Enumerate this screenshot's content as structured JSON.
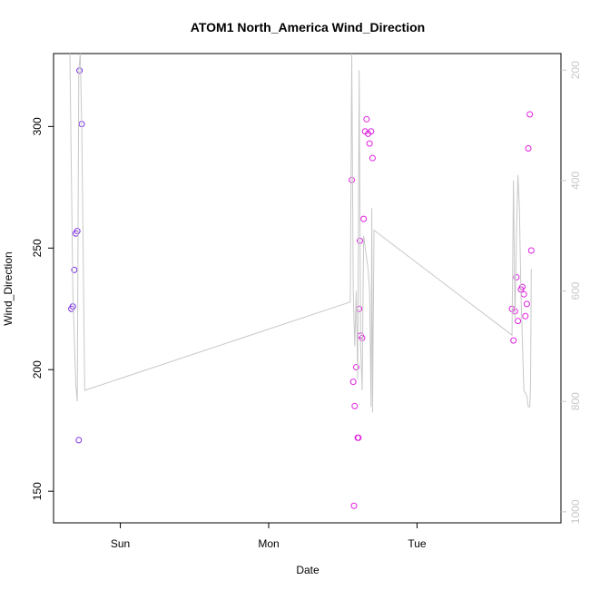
{
  "chart_data": {
    "type": "scatter",
    "title": "ATOM1 North_America Wind_Direction",
    "xlabel": "Date",
    "ylabel": "Wind_Direction",
    "x_unit": "day",
    "x_ticks": [
      {
        "label": "Sun",
        "value": 1
      },
      {
        "label": "Mon",
        "value": 2
      },
      {
        "label": "Tue",
        "value": 3
      }
    ],
    "xlim": [
      0.55,
      3.97
    ],
    "ylim": [
      137,
      330
    ],
    "y_ticks": [
      150,
      200,
      250,
      300
    ],
    "y2lim": [
      1020,
      170
    ],
    "y2_ticks": [
      200,
      400,
      600,
      800,
      1000
    ],
    "y2_color": "#c8c8c8",
    "grid": false,
    "series": [
      {
        "kind": "points",
        "color": "#7b2fe8",
        "points": [
          [
            0.67,
            225
          ],
          [
            0.68,
            226
          ],
          [
            0.69,
            241
          ],
          [
            0.7,
            256
          ],
          [
            0.71,
            257
          ],
          [
            0.72,
            171
          ],
          [
            0.725,
            323
          ],
          [
            0.74,
            301
          ]
        ]
      },
      {
        "kind": "points",
        "color": "#e020e0",
        "points": [
          [
            2.56,
            278
          ],
          [
            2.57,
            195
          ],
          [
            2.575,
            144
          ],
          [
            2.58,
            185
          ],
          [
            2.59,
            201
          ],
          [
            2.6,
            172
          ],
          [
            2.605,
            172
          ],
          [
            2.61,
            225
          ],
          [
            2.615,
            253
          ],
          [
            2.62,
            214
          ],
          [
            2.63,
            213
          ],
          [
            2.64,
            262
          ],
          [
            2.65,
            298
          ],
          [
            2.66,
            303
          ],
          [
            2.67,
            297
          ],
          [
            2.68,
            293
          ],
          [
            2.69,
            298
          ],
          [
            2.7,
            287
          ],
          [
            3.64,
            225
          ],
          [
            3.65,
            212
          ],
          [
            3.66,
            224
          ],
          [
            3.67,
            238
          ],
          [
            3.68,
            220
          ],
          [
            3.7,
            233
          ],
          [
            3.71,
            234
          ],
          [
            3.72,
            231
          ],
          [
            3.73,
            222
          ],
          [
            3.74,
            227
          ],
          [
            3.75,
            291
          ],
          [
            3.76,
            305
          ],
          [
            3.77,
            249
          ]
        ]
      },
      {
        "kind": "line",
        "axis": "y2",
        "color": "#c8c8c8",
        "points": [
          [
            0.66,
            170
          ],
          [
            0.68,
            600
          ],
          [
            0.7,
            770
          ],
          [
            0.71,
            800
          ],
          [
            0.72,
            200
          ],
          [
            0.73,
            170
          ],
          [
            0.74,
            300
          ],
          [
            0.76,
            780
          ],
          [
            2.55,
            620
          ],
          [
            2.56,
            170
          ],
          [
            2.57,
            600
          ],
          [
            2.58,
            700
          ],
          [
            2.59,
            600
          ],
          [
            2.6,
            760
          ],
          [
            2.61,
            200
          ],
          [
            2.62,
            700
          ],
          [
            2.63,
            780
          ],
          [
            2.64,
            500
          ],
          [
            2.65,
            520
          ],
          [
            2.66,
            540
          ],
          [
            2.67,
            560
          ],
          [
            2.68,
            600
          ],
          [
            2.69,
            810
          ],
          [
            2.695,
            450
          ],
          [
            2.7,
            820
          ],
          [
            2.71,
            490
          ],
          [
            3.64,
            680
          ],
          [
            3.65,
            400
          ],
          [
            3.66,
            650
          ],
          [
            3.67,
            500
          ],
          [
            3.68,
            390
          ],
          [
            3.69,
            450
          ],
          [
            3.7,
            600
          ],
          [
            3.72,
            780
          ],
          [
            3.74,
            790
          ],
          [
            3.75,
            810
          ],
          [
            3.76,
            810
          ],
          [
            3.765,
            770
          ],
          [
            3.77,
            560
          ]
        ]
      }
    ]
  }
}
